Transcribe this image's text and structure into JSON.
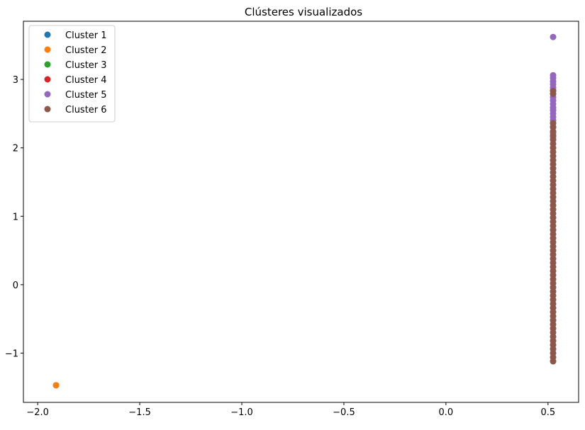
{
  "chart_data": {
    "type": "scatter",
    "title": "Clústeres visualizados",
    "xlabel": "",
    "ylabel": "",
    "xlim": [
      -2.07,
      0.65
    ],
    "ylim": [
      -1.72,
      3.85
    ],
    "xticks": [
      -2.0,
      -1.5,
      -1.0,
      -0.5,
      0.0,
      0.5
    ],
    "xtick_labels": [
      "−2.0",
      "−1.5",
      "−1.0",
      "−0.5",
      "0.0",
      "0.5"
    ],
    "yticks": [
      -1,
      0,
      1,
      2,
      3
    ],
    "ytick_labels": [
      "−1",
      "0",
      "1",
      "2",
      "3"
    ],
    "grid": false,
    "legend_position": "top-left",
    "series": [
      {
        "name": "Cluster 1",
        "color": "#1f77b4",
        "points": [
          [
            -1.91,
            -1.47
          ]
        ]
      },
      {
        "name": "Cluster 2",
        "color": "#ff7f0e",
        "points": [
          [
            -1.91,
            -1.47
          ]
        ]
      },
      {
        "name": "Cluster 3",
        "color": "#2ca02c",
        "points": []
      },
      {
        "name": "Cluster 4",
        "color": "#d62728",
        "points": []
      },
      {
        "name": "Cluster 5",
        "color": "#9467bd",
        "points": [
          [
            0.525,
            3.62
          ],
          [
            0.525,
            3.06
          ],
          [
            0.525,
            3.02
          ],
          [
            0.525,
            2.97
          ],
          [
            0.525,
            2.93
          ],
          [
            0.525,
            2.88
          ],
          [
            0.525,
            2.84
          ],
          [
            0.525,
            2.79
          ],
          [
            0.525,
            2.74
          ],
          [
            0.525,
            2.69
          ],
          [
            0.525,
            2.64
          ],
          [
            0.525,
            2.59
          ],
          [
            0.525,
            2.55
          ],
          [
            0.525,
            2.5
          ],
          [
            0.525,
            2.45
          ],
          [
            0.525,
            2.4
          ],
          [
            0.525,
            2.36
          ],
          [
            0.525,
            2.31
          ],
          [
            0.525,
            2.22
          ],
          [
            0.525,
            2.16
          ]
        ]
      },
      {
        "name": "Cluster 6",
        "color": "#8c564b",
        "points": [
          [
            0.525,
            2.83
          ],
          [
            0.525,
            2.79
          ],
          [
            0.525,
            2.36
          ],
          [
            0.525,
            2.3
          ],
          [
            0.525,
            2.24
          ],
          [
            0.525,
            2.18
          ],
          [
            0.525,
            2.12
          ],
          [
            0.525,
            2.06
          ],
          [
            0.525,
            2.0
          ],
          [
            0.525,
            1.94
          ],
          [
            0.525,
            1.88
          ],
          [
            0.525,
            1.82
          ],
          [
            0.525,
            1.76
          ],
          [
            0.525,
            1.7
          ],
          [
            0.525,
            1.64
          ],
          [
            0.525,
            1.58
          ],
          [
            0.525,
            1.52
          ],
          [
            0.525,
            1.46
          ],
          [
            0.525,
            1.4
          ],
          [
            0.525,
            1.34
          ],
          [
            0.525,
            1.28
          ],
          [
            0.525,
            1.22
          ],
          [
            0.525,
            1.16
          ],
          [
            0.525,
            1.1
          ],
          [
            0.525,
            1.04
          ],
          [
            0.525,
            0.98
          ],
          [
            0.525,
            0.92
          ],
          [
            0.525,
            0.86
          ],
          [
            0.525,
            0.8
          ],
          [
            0.525,
            0.74
          ],
          [
            0.525,
            0.68
          ],
          [
            0.525,
            0.62
          ],
          [
            0.525,
            0.56
          ],
          [
            0.525,
            0.5
          ],
          [
            0.525,
            0.44
          ],
          [
            0.525,
            0.38
          ],
          [
            0.525,
            0.32
          ],
          [
            0.525,
            0.26
          ],
          [
            0.525,
            0.2
          ],
          [
            0.525,
            0.14
          ],
          [
            0.525,
            0.08
          ],
          [
            0.525,
            0.02
          ],
          [
            0.525,
            -0.04
          ],
          [
            0.525,
            -0.1
          ],
          [
            0.525,
            -0.16
          ],
          [
            0.525,
            -0.22
          ],
          [
            0.525,
            -0.28
          ],
          [
            0.525,
            -0.34
          ],
          [
            0.525,
            -0.4
          ],
          [
            0.525,
            -0.46
          ],
          [
            0.525,
            -0.52
          ],
          [
            0.525,
            -0.58
          ],
          [
            0.525,
            -0.64
          ],
          [
            0.525,
            -0.7
          ],
          [
            0.525,
            -0.76
          ],
          [
            0.525,
            -0.82
          ],
          [
            0.525,
            -0.88
          ],
          [
            0.525,
            -0.94
          ],
          [
            0.525,
            -1.0
          ],
          [
            0.525,
            -1.06
          ],
          [
            0.525,
            -1.12
          ]
        ]
      }
    ]
  }
}
